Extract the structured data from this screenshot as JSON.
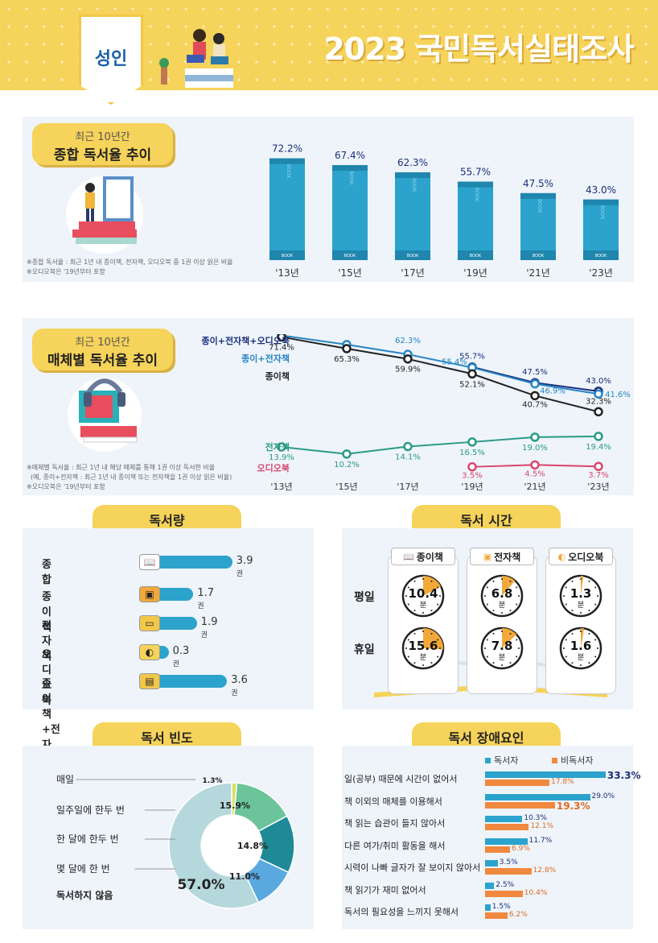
{
  "header": {
    "badge": "성인",
    "title": "2023 국민독서실태조사"
  },
  "chart_data": [
    {
      "type": "bar",
      "title_sub": "최근 10년간",
      "title": "종합 독서율 추이",
      "categories": [
        "'13년",
        "'15년",
        "'17년",
        "'19년",
        "'21년",
        "'23년"
      ],
      "values": [
        72.2,
        67.4,
        62.3,
        55.7,
        47.5,
        43.0
      ],
      "value_labels": [
        "72.2%",
        "67.4%",
        "62.3%",
        "55.7%",
        "47.5%",
        "43.0%"
      ],
      "bar_text": "BOOK",
      "ylim": [
        0,
        80
      ],
      "notes": [
        "※종합 독서율 : 최근 1년 내 종이책, 전자책, 오디오북 중 1권 이상 읽은 비율",
        "※오디오북은 '19년부터 포함"
      ]
    },
    {
      "type": "line",
      "title_sub": "최근 10년간",
      "title": "매체별 독서율 추이",
      "categories": [
        "'13년",
        "'15년",
        "'17년",
        "'19년",
        "'21년",
        "'23년"
      ],
      "ylim": [
        0,
        80
      ],
      "series": [
        {
          "name": "종이+전자책+오디오북",
          "color": "#1a2f78",
          "values": [
            null,
            null,
            null,
            55.7,
            47.5,
            43.0
          ],
          "labels": [
            "",
            "",
            "",
            "55.7%",
            "47.5%",
            "43.0%"
          ]
        },
        {
          "name": "종이+전자책",
          "color": "#2785c4",
          "values": [
            72.2,
            67.4,
            62.3,
            55.4,
            46.9,
            41.6
          ],
          "labels": [
            "72.2%",
            "67.4%",
            "62.3%",
            "55.4%",
            "46.9%",
            "41.6%"
          ]
        },
        {
          "name": "종이책",
          "color": "#222222",
          "values": [
            71.4,
            65.3,
            59.9,
            52.1,
            40.7,
            32.3
          ],
          "labels": [
            "71.4%",
            "65.3%",
            "59.9%",
            "52.1%",
            "40.7%",
            "32.3%"
          ]
        },
        {
          "name": "전자책",
          "color": "#2b9a86",
          "values": [
            13.9,
            10.2,
            14.1,
            16.5,
            19.0,
            19.4
          ],
          "labels": [
            "13.9%",
            "10.2%",
            "14.1%",
            "16.5%",
            "19.0%",
            "19.4%"
          ]
        },
        {
          "name": "오디오북",
          "color": "#d9466e",
          "values": [
            null,
            null,
            null,
            3.5,
            4.5,
            3.7
          ],
          "labels": [
            "",
            "",
            "",
            "3.5%",
            "4.5%",
            "3.7%"
          ]
        }
      ],
      "notes": [
        "※매체별 독서율 : 최근 1년 내 해당 매체를 통해 1권 이상 독서한 비율",
        "(예, 종이+전자책 : 최근 1년 내 종이책 또는 전자책을 1권 이상 읽은 비율)",
        "※오디오북은 '19년부터 포함"
      ]
    },
    {
      "type": "bar",
      "orientation": "horizontal",
      "title": "독서량",
      "categories": [
        "종합",
        "종이책",
        "전자책",
        "오디오북",
        "종이책+전자책"
      ],
      "values": [
        3.9,
        1.7,
        1.9,
        0.3,
        3.6
      ],
      "unit": "권"
    },
    {
      "type": "table",
      "title": "독서 시간",
      "columns": [
        "종이책",
        "전자책",
        "오디오북"
      ],
      "rows": [
        {
          "label": "평일",
          "values": [
            10.4,
            6.8,
            1.3
          ]
        },
        {
          "label": "휴일",
          "values": [
            15.6,
            7.8,
            1.6
          ]
        }
      ],
      "unit": "분"
    },
    {
      "type": "pie",
      "title": "독서 빈도",
      "labels": [
        "매일",
        "일주일에 한두 번",
        "한 달에 한두 번",
        "몇 달에 한 번",
        "독서하지 않음"
      ],
      "values": [
        1.3,
        15.9,
        14.8,
        11.0,
        57.0
      ],
      "value_labels": [
        "1.3%",
        "15.9%",
        "14.8%",
        "11.0%",
        "57.0%"
      ],
      "colors": [
        "#d6e05a",
        "#6cc59a",
        "#1f8a96",
        "#5aa8e0",
        "#b5d8dc"
      ]
    },
    {
      "type": "bar",
      "orientation": "horizontal",
      "title": "독서 장애요인",
      "categories": [
        "일(공부) 때문에 시간이 없어서",
        "책 이외의 매체를 이용해서",
        "책 읽는 습관이 들지 않아서",
        "다른 여가/취미 활동을 해서",
        "시력이 나빠 글자가 잘 보이지 않아서",
        "책 읽기가 재미 없어서",
        "독서의 필요성을 느끼지 못해서"
      ],
      "series": [
        {
          "name": "독서자",
          "color": "#2ba3cc",
          "values": [
            33.3,
            29.0,
            10.3,
            11.7,
            3.5,
            2.5,
            1.5
          ]
        },
        {
          "name": "비독서자",
          "color": "#f0883e",
          "values": [
            17.8,
            19.3,
            12.1,
            6.9,
            12.8,
            10.4,
            6.2
          ]
        }
      ],
      "value_labels_reader": [
        "33.3%",
        "29.0%",
        "10.3%",
        "11.7%",
        "3.5%",
        "2.5%",
        "1.5%"
      ],
      "value_labels_nonreader": [
        "17.8%",
        "19.3%",
        "12.1%",
        "6.9%",
        "12.8%",
        "10.4%",
        "6.2%"
      ]
    }
  ]
}
